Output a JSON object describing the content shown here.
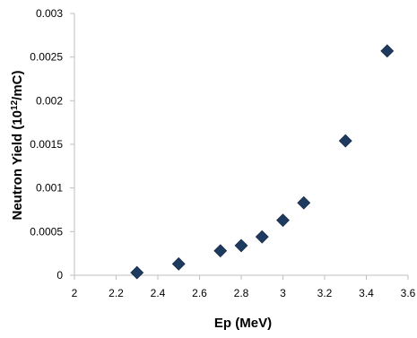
{
  "chart_data": {
    "type": "scatter",
    "title": "",
    "xlabel": "Ep (MeV)",
    "ylabel_prefix": "Neutron Yield (10",
    "ylabel_sup": "12",
    "ylabel_suffix": "/mC)",
    "xlim": [
      2,
      3.6
    ],
    "ylim": [
      0,
      0.003
    ],
    "x_ticks": [
      2,
      2.2,
      2.4,
      2.6,
      2.8,
      3,
      3.2,
      3.4,
      3.6
    ],
    "x_tick_labels": [
      "2",
      "2.2",
      "2.4",
      "2.6",
      "2.8",
      "3",
      "3.2",
      "3.4",
      "3.6"
    ],
    "y_ticks": [
      0,
      0.0005,
      0.001,
      0.0015,
      0.002,
      0.0025,
      0.003
    ],
    "y_tick_labels": [
      "0",
      "0.0005",
      "0.001",
      "0.0015",
      "0.002",
      "0.0025",
      "0.003"
    ],
    "grid": false,
    "marker": "diamond",
    "marker_color": "#1f3a5f",
    "axis_color": "#bfbfbf",
    "series": [
      {
        "x": [
          2.3,
          2.5,
          2.7,
          2.8,
          2.9,
          3.0,
          3.1,
          3.3,
          3.5
        ],
        "y": [
          3e-05,
          0.00013,
          0.00028,
          0.00034,
          0.00044,
          0.00063,
          0.00083,
          0.00154,
          0.00257
        ]
      }
    ]
  }
}
